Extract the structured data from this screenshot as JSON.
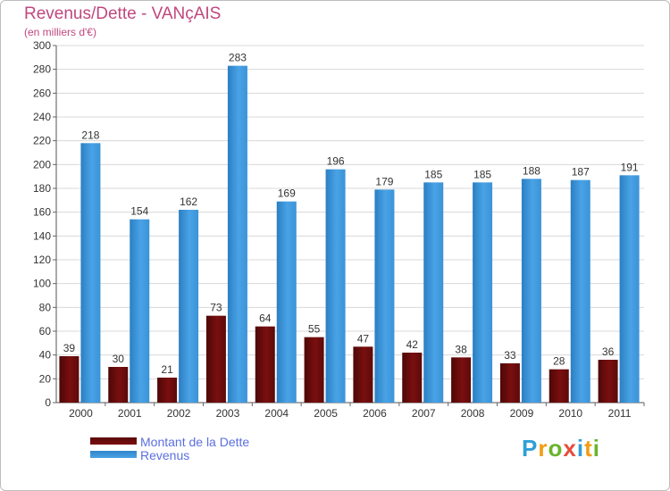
{
  "title": "Revenus/Dette - VANçAIS",
  "subtitle": "(en milliers d'€)",
  "logo": {
    "text": "Proxiti",
    "colors": [
      "#2f9fd8",
      "#f39c12",
      "#6ab42d",
      "#e74c3c"
    ]
  },
  "colors": {
    "debt": "#7a0f0f",
    "revenue": "#4aa3e6",
    "title": "#c0477e",
    "legend_text": "#5a6fe0"
  },
  "chart_data": {
    "type": "bar",
    "title": "Revenus/Dette - VANçAIS",
    "xlabel": "",
    "ylabel": "(en milliers d'€)",
    "categories": [
      "2000",
      "2001",
      "2002",
      "2003",
      "2004",
      "2005",
      "2006",
      "2007",
      "2008",
      "2009",
      "2010",
      "2011"
    ],
    "series": [
      {
        "name": "Montant de la Dette",
        "values": [
          39,
          30,
          21,
          73,
          64,
          55,
          47,
          42,
          38,
          33,
          28,
          36
        ]
      },
      {
        "name": "Revenus",
        "values": [
          218,
          154,
          162,
          283,
          169,
          196,
          179,
          185,
          185,
          188,
          187,
          191
        ]
      }
    ],
    "ylim": [
      0,
      300
    ],
    "yticks": [
      0,
      20,
      40,
      60,
      80,
      100,
      120,
      140,
      160,
      180,
      200,
      220,
      240,
      260,
      280,
      300
    ],
    "grid": true,
    "legend": "bottom-left"
  }
}
